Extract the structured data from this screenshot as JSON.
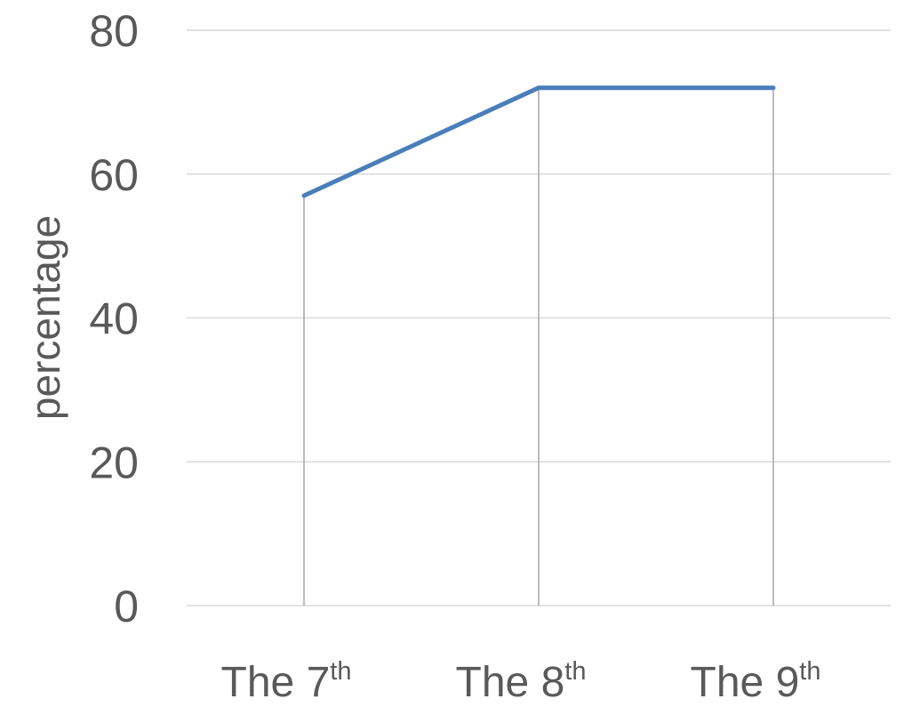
{
  "chart_data": {
    "type": "line",
    "categories": [
      {
        "text": "The 7",
        "sup": "th"
      },
      {
        "text": "The 8",
        "sup": "th"
      },
      {
        "text": "The 9",
        "sup": "th"
      }
    ],
    "series": [
      {
        "values": [
          57,
          72,
          72
        ],
        "color": "#4a7ebb"
      }
    ],
    "ylabel": "percentage",
    "xlabel": "",
    "title": "",
    "ylim": [
      0,
      80
    ],
    "yticks": [
      0,
      20,
      40,
      60,
      80
    ],
    "grid": true,
    "drop_lines": true,
    "legend": "none",
    "colors": {
      "gridline": "#d9d9d9",
      "dropline": "#a6a6a6",
      "text": "#595959"
    }
  }
}
